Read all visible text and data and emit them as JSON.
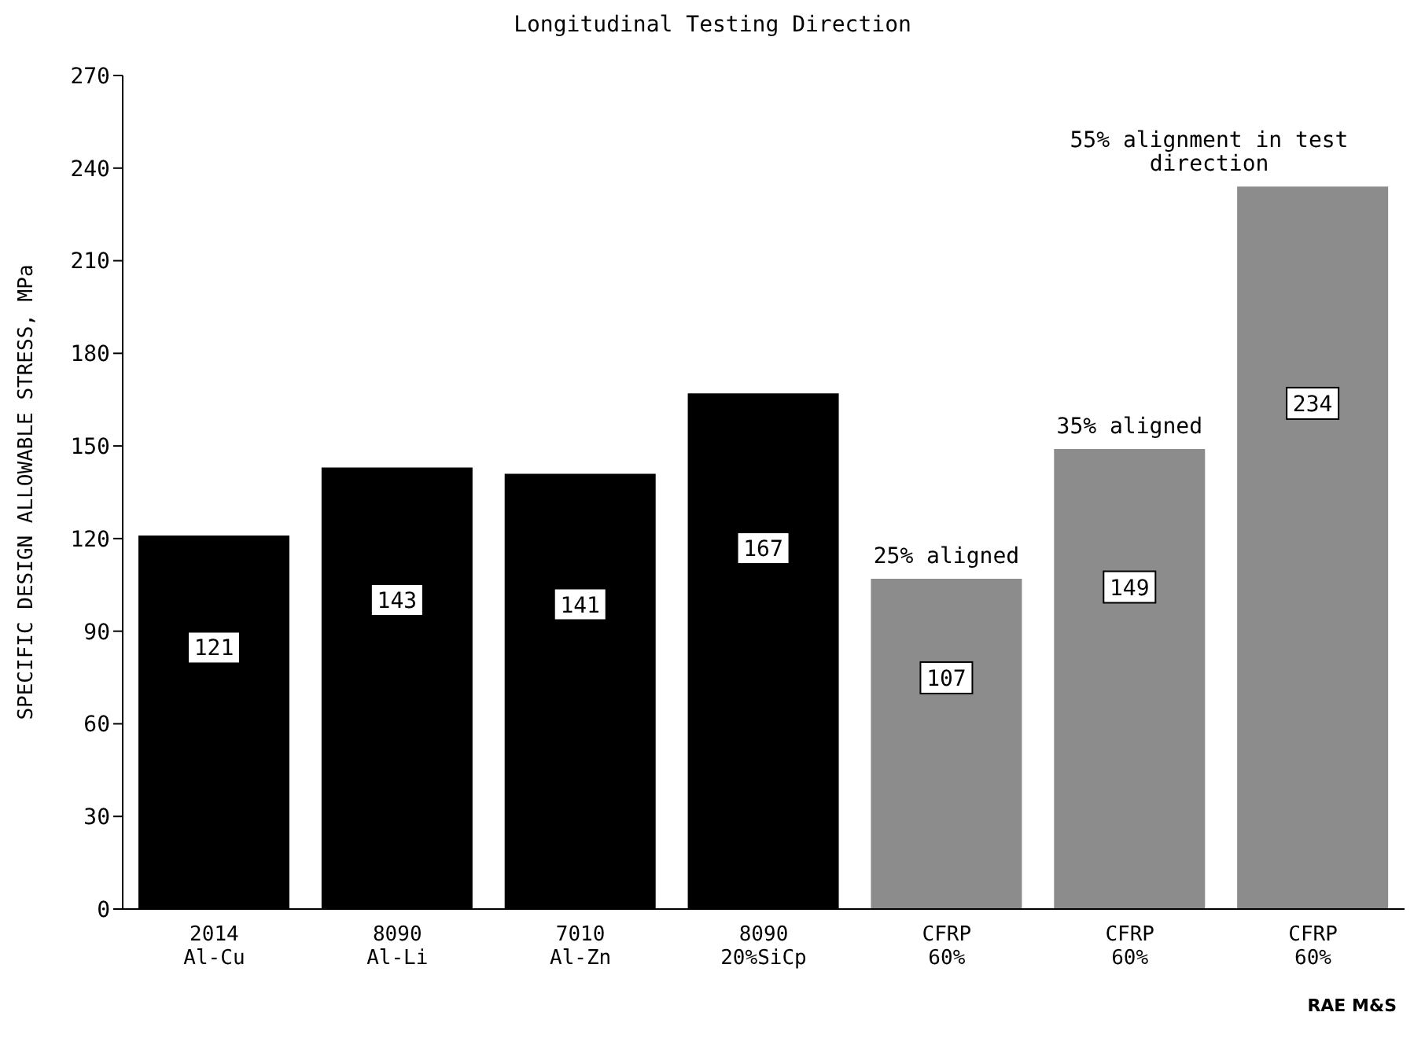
{
  "chart_data": {
    "type": "bar",
    "title": "Longitudinal Testing Direction",
    "ylabel": "SPECIFIC DESIGN ALLOWABLE STRESS, MPa",
    "categories": [
      "2014 Al-Cu",
      "8090 Al-Li",
      "7010 Al-Zn",
      "8090 20%SiCp",
      "CFRP 60%",
      "CFRP 60%",
      "CFRP 60%"
    ],
    "values": [
      121,
      143,
      141,
      167,
      107,
      149,
      234
    ],
    "colors": [
      "#000000",
      "#000000",
      "#000000",
      "#000000",
      "#8c8c8c",
      "#8c8c8c",
      "#8c8c8c"
    ],
    "data_labels": true,
    "ylim": [
      0,
      270
    ],
    "yticks": [
      0,
      30,
      60,
      90,
      120,
      150,
      180,
      210,
      240,
      270
    ],
    "annotations": [
      "25% aligned",
      "35% aligned",
      "55% alignment in test direction",
      "RAE M&S"
    ]
  }
}
